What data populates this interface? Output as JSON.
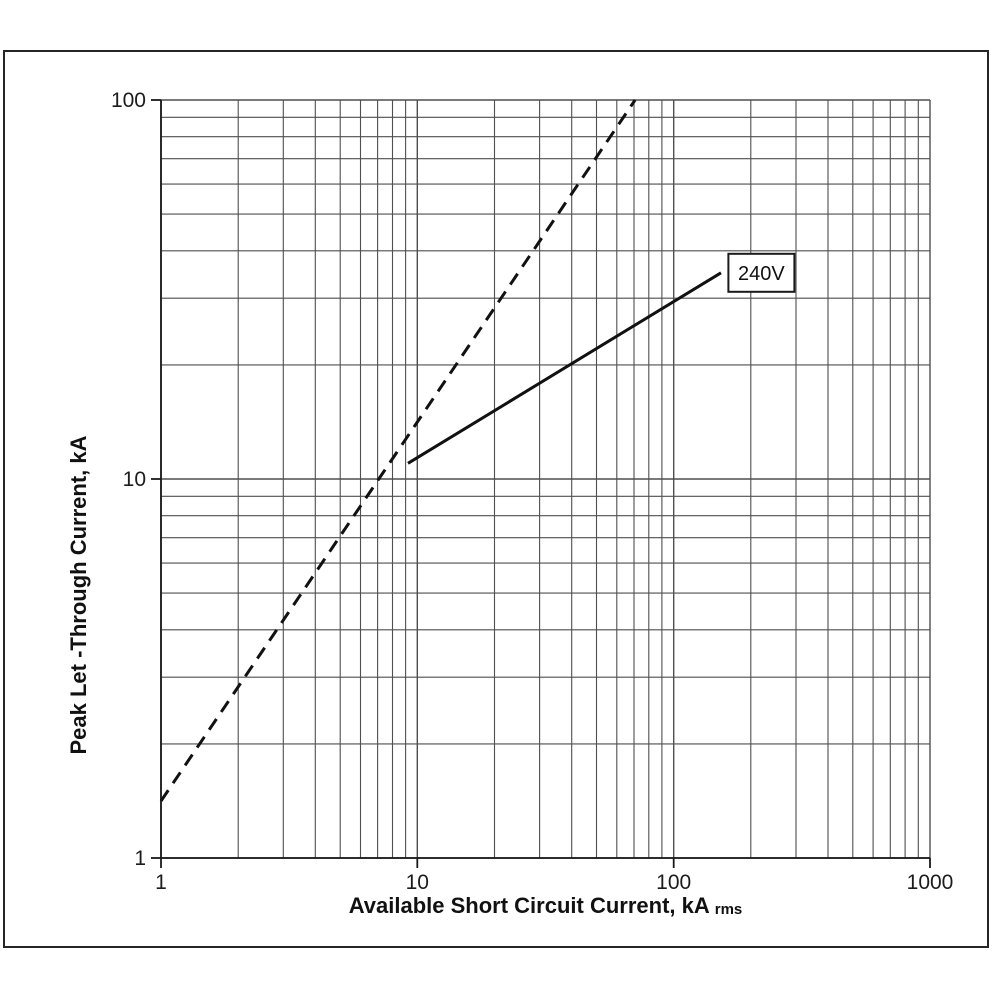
{
  "figure": {
    "background": "#ffffff",
    "border_color": "#262626"
  },
  "chart_data": {
    "type": "line",
    "title": "",
    "x_axis": {
      "label": "Available Short Circuit Current, kA",
      "label_subscript": "rms",
      "scale": "log",
      "range": [
        1,
        1000
      ],
      "ticks": [
        {
          "value": 1,
          "label": "1"
        },
        {
          "value": 10,
          "label": "10"
        },
        {
          "value": 100,
          "label": "100"
        },
        {
          "value": 1000,
          "label": "1000"
        }
      ]
    },
    "y_axis": {
      "label": "Peak Let -Through Current, kA",
      "scale": "log",
      "range": [
        1,
        100
      ],
      "ticks": [
        {
          "value": 1,
          "label": "1"
        },
        {
          "value": 10,
          "label": "10"
        },
        {
          "value": 100,
          "label": "100"
        }
      ]
    },
    "grid": {
      "minor_lines": true,
      "color": "#4f4f4f"
    },
    "axis_color": "#1a1a1a",
    "series": [
      {
        "id": "dashed-reference-line",
        "style": "dashed",
        "color": "#111111",
        "points": [
          [
            1,
            1.414
          ],
          [
            70.7,
            100
          ]
        ]
      },
      {
        "id": "240v-let-through-line",
        "style": "solid",
        "color": "#111111",
        "points": [
          [
            9.2,
            11
          ],
          [
            153,
            35
          ]
        ]
      }
    ],
    "annotations": [
      {
        "label": "240V",
        "x": 220,
        "y": 35,
        "boxed": true
      }
    ]
  }
}
